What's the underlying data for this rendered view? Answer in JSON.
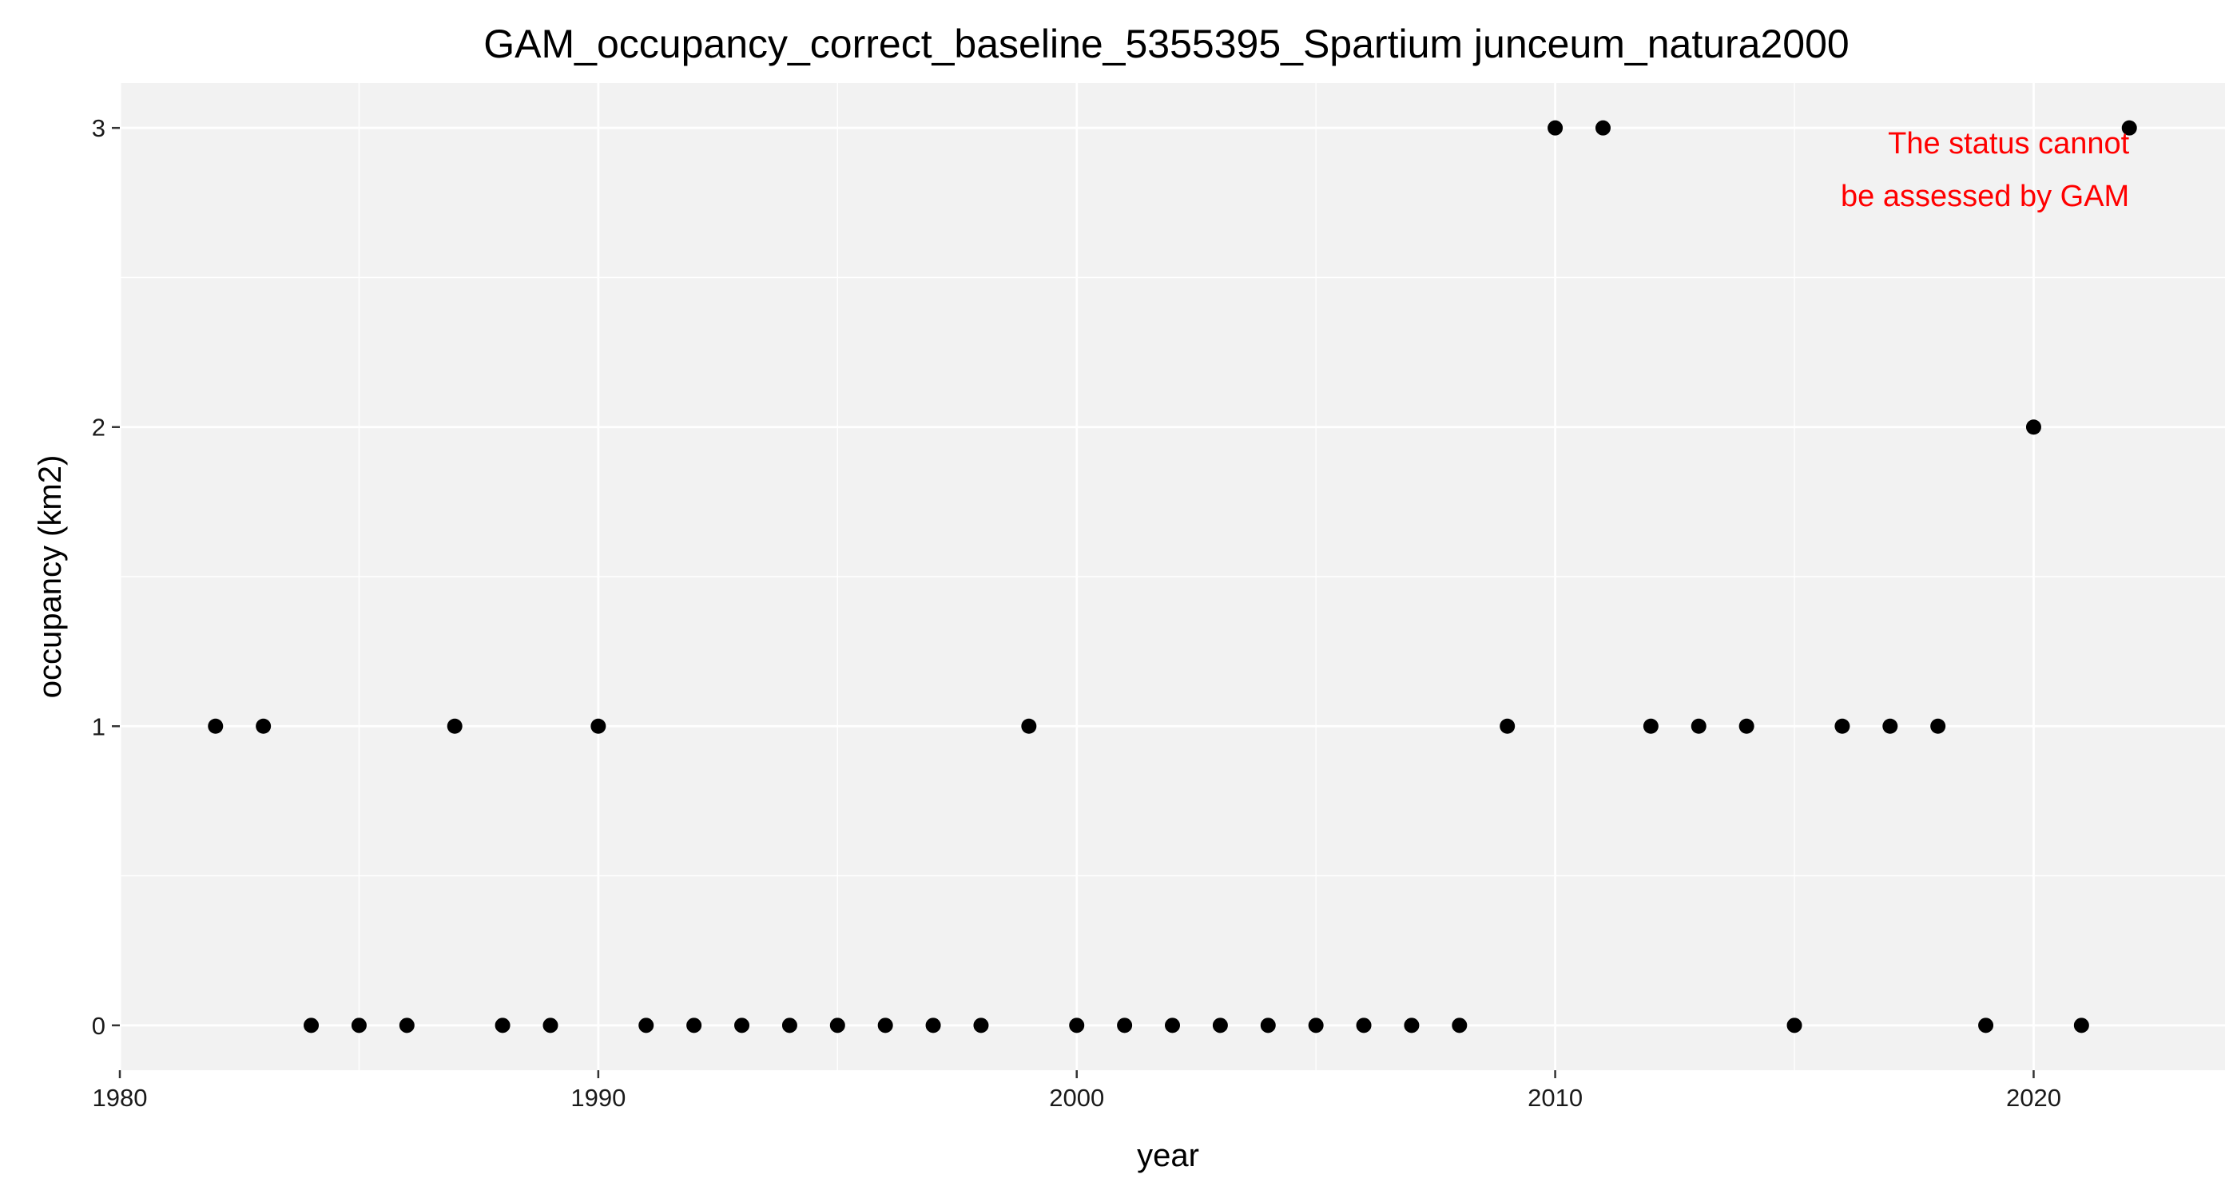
{
  "chart_data": {
    "type": "scatter",
    "title": "GAM_occupancy_correct_baseline_5355395_Spartium junceum_natura2000",
    "xlabel": "year",
    "ylabel": "occupancy (km2)",
    "xlim": [
      1980,
      2024
    ],
    "ylim": [
      -0.15,
      3.15
    ],
    "x_ticks": [
      1980,
      1990,
      2000,
      2010,
      2020
    ],
    "x_tick_labels": [
      "1980",
      "1990",
      "2000",
      "2010",
      "2020"
    ],
    "y_ticks": [
      0,
      1,
      2,
      3
    ],
    "y_tick_labels": [
      "0",
      "1",
      "2",
      "3"
    ],
    "grid": true,
    "legend": "none",
    "x": [
      1982,
      1983,
      1984,
      1985,
      1986,
      1987,
      1988,
      1989,
      1990,
      1991,
      1992,
      1993,
      1994,
      1995,
      1996,
      1997,
      1998,
      1999,
      2000,
      2001,
      2002,
      2003,
      2004,
      2005,
      2006,
      2007,
      2008,
      2009,
      2010,
      2011,
      2012,
      2013,
      2014,
      2015,
      2016,
      2017,
      2018,
      2019,
      2020,
      2021,
      2022
    ],
    "y": [
      1,
      1,
      0,
      0,
      0,
      1,
      0,
      0,
      1,
      0,
      0,
      0,
      0,
      0,
      0,
      0,
      0,
      1,
      0,
      0,
      0,
      0,
      0,
      0,
      0,
      0,
      0,
      1,
      3,
      3,
      1,
      1,
      1,
      0,
      1,
      1,
      1,
      0,
      2,
      0,
      3
    ],
    "annotation": {
      "lines": [
        "The status cannot",
        "be assessed by GAM"
      ],
      "x": 2022,
      "y": 3
    },
    "colors": {
      "panel_background": "#f2f2f2",
      "grid": "#ffffff",
      "points": "#000000",
      "annotation": "#ff0000"
    }
  }
}
